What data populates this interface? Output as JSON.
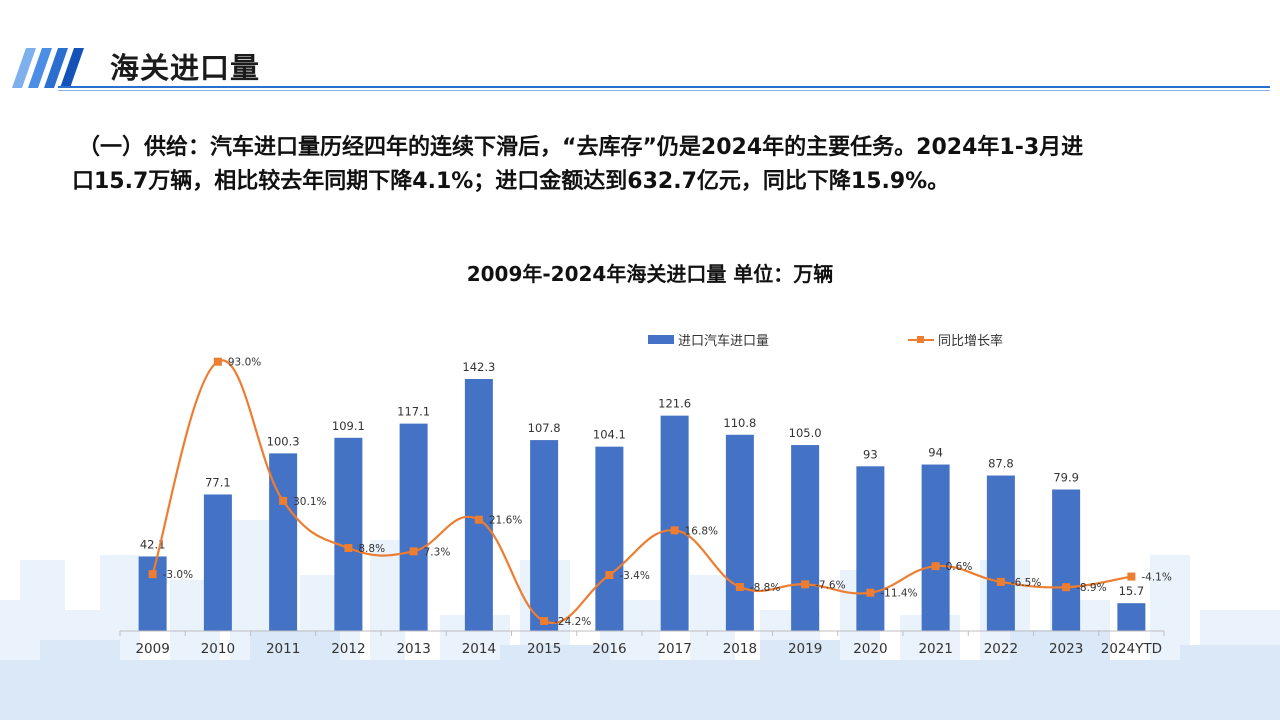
{
  "page": {
    "title": "海关进口量",
    "summary_line1": "（一）供给：汽车进口量历经四年的连续下滑后，“去库存”仍是2024年的主要任务。2024年1-3月进",
    "summary_line2": "口15.7万辆，相比较去年同期下降4.1%；进口金额达到632.7亿元，同比下降15.9%。"
  },
  "colors": {
    "bar": "#4472c4",
    "line": "#ed7d31",
    "accent": "#2b6fd0"
  },
  "chart_data": {
    "type": "bar",
    "title": "2009年-2024年海关进口量  单位：万辆",
    "categories": [
      "2009",
      "2010",
      "2011",
      "2012",
      "2013",
      "2014",
      "2015",
      "2016",
      "2017",
      "2018",
      "2019",
      "2020",
      "2021",
      "2022",
      "2023",
      "2024YTD"
    ],
    "series": [
      {
        "name": "进口汽车进口量",
        "type": "bar",
        "values": [
          42.1,
          77.1,
          100.3,
          109.1,
          117.1,
          142.3,
          107.8,
          104.1,
          121.6,
          110.8,
          105.0,
          93,
          94,
          87.8,
          79.9,
          15.7
        ],
        "labels": [
          "42.1",
          "77.1",
          "100.3",
          "109.1",
          "117.1",
          "142.3",
          "107.8",
          "104.1",
          "121.6",
          "110.8",
          "105.0",
          "93",
          "94",
          "87.8",
          "79.9",
          "15.7"
        ]
      },
      {
        "name": "同比增长率",
        "type": "line",
        "values": [
          -3.0,
          93.0,
          30.1,
          8.8,
          7.3,
          21.6,
          -24.2,
          -3.4,
          16.8,
          -8.8,
          -7.6,
          -11.4,
          0.6,
          -6.5,
          -8.9,
          -4.1
        ],
        "labels": [
          "-3.0%",
          "93.0%",
          "30.1%",
          "8.8%",
          "7.3%",
          "21.6%",
          "-24.2%",
          "-3.4%",
          "16.8%",
          "-8.8%",
          "-7.6%",
          "-11.4%",
          "0.6%",
          "-6.5%",
          "-8.9%",
          "-4.1%"
        ]
      }
    ],
    "legend_position": "top",
    "grid": false
  }
}
